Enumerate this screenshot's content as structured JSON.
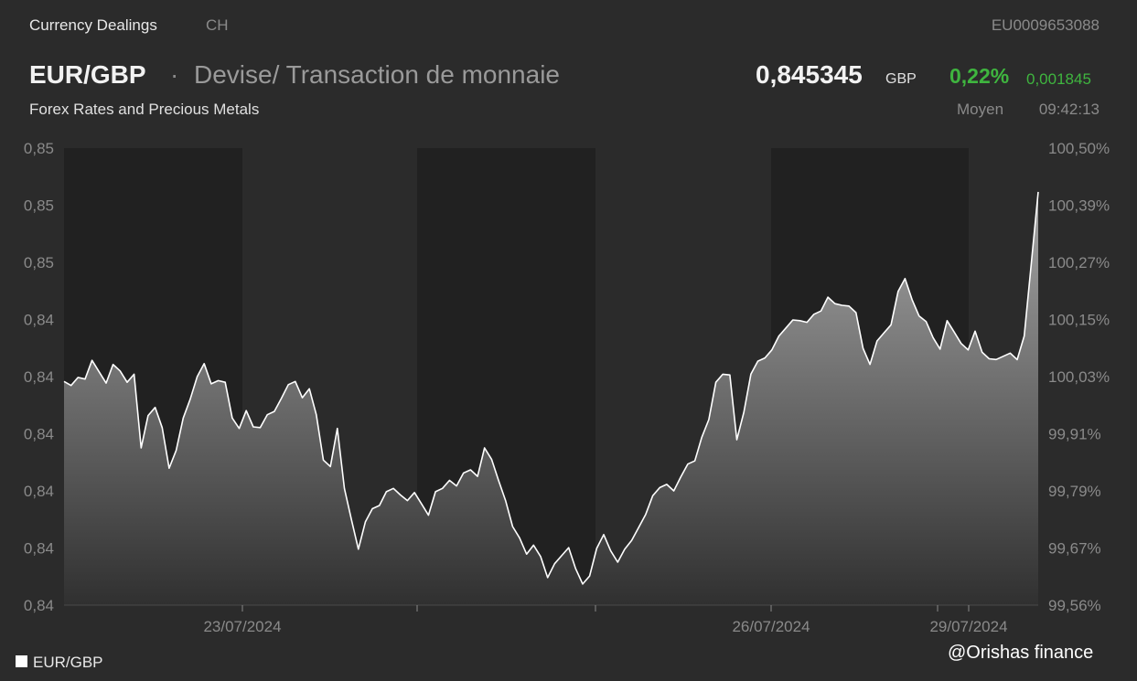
{
  "header": {
    "category": "Currency Dealings",
    "country": "CH",
    "isin": "EU0009653088",
    "symbol": "EUR/GBP",
    "separator": "·",
    "long_name": "Devise/ Transaction de monnaie",
    "subcategory": "Forex Rates and Precious Metals",
    "price": "0,845345",
    "currency": "GBP",
    "change_pct": "0,22%",
    "change_abs": "0,001845",
    "price_type": "Moyen",
    "time": "09:42:13"
  },
  "colors": {
    "background": "#2b2b2b",
    "shaded_band": "#212121",
    "line": "#ffffff",
    "positive": "#3fb53f",
    "muted_text": "#8a8a8a"
  },
  "legend": {
    "label": "EUR/GBP",
    "position": "bottom-left"
  },
  "watermark": "@Orishas finance",
  "chart_data": {
    "type": "area",
    "title": "",
    "xlabel": "",
    "ylabel": "",
    "x_tick_labels": [
      "23/07/2024",
      "26/07/2024",
      "29/07/2024"
    ],
    "y_left_tick_labels": [
      "0,85",
      "0,85",
      "0,85",
      "0,84",
      "0,84",
      "0,84",
      "0,84",
      "0,84",
      "0,84"
    ],
    "y_right_tick_labels": [
      "100,50%",
      "100,39%",
      "100,27%",
      "100,15%",
      "100,03%",
      "99,91%",
      "99,79%",
      "99,67%",
      "99,56%"
    ],
    "y_right_range_pct": [
      99.56,
      100.5
    ],
    "series": [
      {
        "name": "EUR/GBP",
        "unit": "% of reference",
        "values": [
          100.02,
          100.01,
          100.03,
          100.03,
          100.06,
          100.04,
          100.02,
          100.05,
          100.04,
          100.02,
          100.04,
          99.88,
          99.95,
          99.97,
          99.92,
          99.84,
          99.88,
          99.95,
          99.98,
          100.03,
          100.06,
          100.01,
          100.02,
          100.02,
          99.95,
          99.92,
          99.96,
          99.93,
          99.92,
          99.95,
          99.96,
          99.99,
          100.01,
          100.02,
          99.99,
          100.0,
          99.95,
          99.86,
          99.85,
          99.92,
          99.8,
          99.74,
          99.67,
          99.73,
          99.76,
          99.77,
          99.79,
          99.8,
          99.79,
          99.77,
          99.79,
          99.77,
          99.75,
          99.79,
          99.8,
          99.82,
          99.8,
          99.83,
          99.84,
          99.83,
          99.88,
          99.86,
          99.82,
          99.77,
          99.72,
          99.7,
          99.67,
          99.68,
          99.66,
          99.62,
          99.64,
          99.66,
          99.68,
          99.64,
          99.6,
          99.62,
          99.68,
          99.7,
          99.67,
          99.65,
          99.68,
          99.69,
          99.72,
          99.75,
          99.78,
          99.8,
          99.81,
          99.8,
          99.82,
          99.85,
          99.86,
          99.9,
          99.94,
          100.02,
          100.04,
          100.03,
          99.9,
          99.96,
          100.03,
          100.06,
          100.07,
          100.09,
          100.11,
          100.13,
          100.15,
          100.14,
          100.14,
          100.16,
          100.17,
          100.19,
          100.18,
          100.18,
          100.17,
          100.16,
          100.09,
          100.06,
          100.1,
          100.12,
          100.14,
          100.2,
          100.23,
          100.19,
          100.16,
          100.14,
          100.11,
          100.09,
          100.14,
          100.12,
          100.1,
          100.09,
          100.12,
          100.08,
          100.07,
          100.06,
          100.07,
          100.08,
          100.07,
          100.11,
          100.26,
          100.41
        ]
      }
    ],
    "grid": false
  }
}
